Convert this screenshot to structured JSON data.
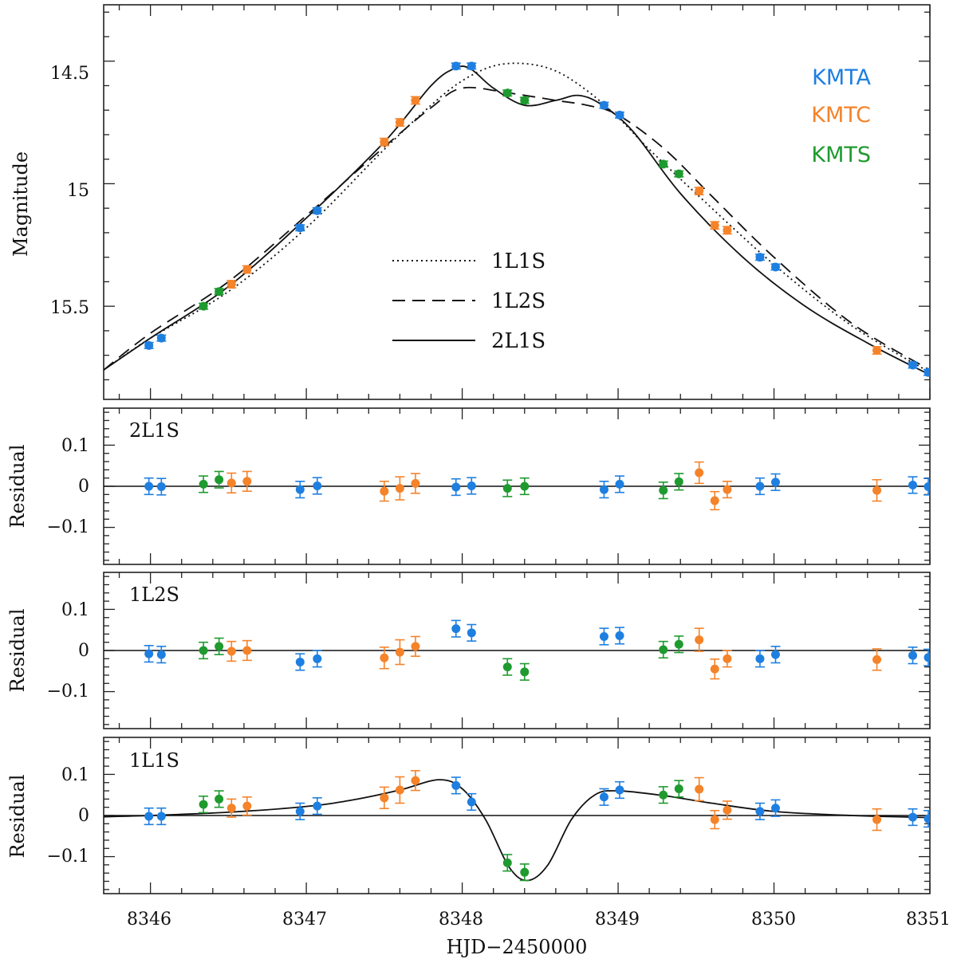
{
  "chart_data": {
    "type": "scatter",
    "xlabel": "HJD−2450000",
    "xlim": [
      8345.7,
      8351
    ],
    "x_ticks": [
      "8346",
      "8347",
      "8348",
      "8349",
      "8350",
      "8351"
    ],
    "observatories": [
      {
        "name": "KMTA",
        "color": "#1e7fe0"
      },
      {
        "name": "KMTC",
        "color": "#f5832a"
      },
      {
        "name": "KMTS",
        "color": "#1f9a2f"
      }
    ],
    "panels": [
      {
        "id": "lightcurve",
        "ylabel": "Magnitude",
        "ylim": [
          15.88,
          14.27
        ],
        "y_ticks": [
          "14.5",
          "15",
          "15.5"
        ],
        "models": [
          {
            "name": "1L1S",
            "style": "dotted",
            "x": [
              8345.7,
              8346.0,
              8346.5,
              8347.0,
              8347.5,
              8347.8,
              8348.0,
              8348.2,
              8348.4,
              8348.6,
              8348.8,
              8349.0,
              8349.2,
              8349.5,
              8350.0,
              8350.5,
              8351.0
            ],
            "y": [
              15.76,
              15.63,
              15.44,
              15.18,
              14.86,
              14.68,
              14.58,
              14.52,
              14.51,
              14.54,
              14.62,
              14.73,
              14.86,
              15.04,
              15.33,
              15.58,
              15.77
            ]
          },
          {
            "name": "1L2S",
            "style": "dashed",
            "x": [
              8345.7,
              8346.0,
              8346.5,
              8347.0,
              8347.5,
              8347.8,
              8348.0,
              8348.3,
              8348.6,
              8348.8,
              8349.0,
              8349.3,
              8349.6,
              8350.0,
              8350.5,
              8351.0
            ],
            "y": [
              15.76,
              15.61,
              15.4,
              15.13,
              14.85,
              14.69,
              14.61,
              14.63,
              14.66,
              14.68,
              14.72,
              14.86,
              15.05,
              15.3,
              15.57,
              15.76
            ]
          },
          {
            "name": "2L1S",
            "style": "solid",
            "x": [
              8345.7,
              8346.0,
              8346.5,
              8347.0,
              8347.5,
              8347.8,
              8347.95,
              8348.05,
              8348.2,
              8348.4,
              8348.6,
              8348.75,
              8348.9,
              8349.1,
              8349.4,
              8349.8,
              8350.2,
              8350.6,
              8351.0
            ],
            "y": [
              15.76,
              15.63,
              15.42,
              15.14,
              14.83,
              14.6,
              14.53,
              14.53,
              14.61,
              14.68,
              14.66,
              14.64,
              14.68,
              14.79,
              15.04,
              15.3,
              15.5,
              15.65,
              15.78
            ]
          }
        ],
        "points": [
          {
            "obs": "KMTA",
            "x": [
              8345.99,
              8346.07,
              8346.96,
              8347.07,
              8347.96,
              8348.06,
              8348.91,
              8349.01,
              8349.91,
              8350.01,
              8350.89,
              8350.99
            ],
            "y": [
              15.66,
              15.63,
              15.18,
              15.11,
              14.52,
              14.52,
              14.68,
              14.72,
              15.3,
              15.34,
              15.74,
              15.77
            ],
            "err": [
              0.012,
              0.012,
              0.012,
              0.012,
              0.012,
              0.012,
              0.012,
              0.012,
              0.012,
              0.012,
              0.012,
              0.012
            ]
          },
          {
            "obs": "KMTC",
            "x": [
              8346.52,
              8346.62,
              8347.5,
              8347.6,
              8347.7,
              8349.52,
              8349.62,
              8349.7,
              8350.66
            ],
            "y": [
              15.41,
              15.35,
              14.83,
              14.75,
              14.66,
              15.03,
              15.17,
              15.19,
              15.68
            ],
            "err": [
              0.015,
              0.015,
              0.015,
              0.015,
              0.015,
              0.015,
              0.015,
              0.015,
              0.015
            ]
          },
          {
            "obs": "KMTS",
            "x": [
              8346.34,
              8346.44,
              8348.29,
              8348.4,
              8349.29,
              8349.39
            ],
            "y": [
              15.5,
              15.44,
              14.63,
              14.66,
              14.92,
              14.96
            ],
            "err": [
              0.012,
              0.012,
              0.012,
              0.012,
              0.012,
              0.012
            ]
          }
        ]
      },
      {
        "id": "resid-2L1S",
        "tag": "2L1S",
        "ylabel": "Residual",
        "ylim": [
          -0.19,
          0.19
        ],
        "y_ticks": [
          "0.1",
          "0",
          "−0.1"
        ],
        "points": [
          {
            "obs": "KMTA",
            "x": [
              8345.99,
              8346.07,
              8346.96,
              8347.07,
              8347.96,
              8348.06,
              8348.91,
              8349.01,
              8349.91,
              8350.01,
              8350.89,
              8350.99
            ],
            "y": [
              0.0,
              -0.001,
              -0.008,
              0.001,
              -0.002,
              0.001,
              -0.008,
              0.005,
              0.0,
              0.01,
              0.003,
              -0.001
            ],
            "err": [
              0.02,
              0.02,
              0.02,
              0.02,
              0.02,
              0.02,
              0.02,
              0.02,
              0.02,
              0.02,
              0.02,
              0.02
            ]
          },
          {
            "obs": "KMTC",
            "x": [
              8346.52,
              8346.62,
              8347.5,
              8347.6,
              8347.7,
              8349.52,
              8349.62,
              8349.7,
              8350.66
            ],
            "y": [
              0.008,
              0.012,
              -0.012,
              -0.005,
              0.007,
              0.033,
              -0.035,
              -0.008,
              -0.01
            ],
            "err": [
              0.024,
              0.024,
              0.024,
              0.028,
              0.024,
              0.026,
              0.022,
              0.02,
              0.026
            ]
          },
          {
            "obs": "KMTS",
            "x": [
              8346.34,
              8346.44,
              8348.29,
              8348.4,
              8349.29,
              8349.39
            ],
            "y": [
              0.005,
              0.016,
              -0.005,
              0.0,
              -0.01,
              0.011
            ],
            "err": [
              0.02,
              0.02,
              0.02,
              0.02,
              0.02,
              0.02
            ]
          }
        ]
      },
      {
        "id": "resid-1L2S",
        "tag": "1L2S",
        "ylabel": "Residual",
        "ylim": [
          -0.19,
          0.19
        ],
        "y_ticks": [
          "0.1",
          "0",
          "−0.1"
        ],
        "points": [
          {
            "obs": "KMTA",
            "x": [
              8345.99,
              8346.07,
              8346.96,
              8347.07,
              8347.96,
              8348.06,
              8348.91,
              8349.01,
              8349.91,
              8350.01,
              8350.89,
              8350.99
            ],
            "y": [
              -0.008,
              -0.01,
              -0.028,
              -0.02,
              0.053,
              0.043,
              0.034,
              0.036,
              -0.02,
              -0.01,
              -0.012,
              -0.017
            ],
            "err": [
              0.02,
              0.02,
              0.02,
              0.02,
              0.02,
              0.02,
              0.02,
              0.02,
              0.02,
              0.02,
              0.02,
              0.02
            ]
          },
          {
            "obs": "KMTC",
            "x": [
              8346.52,
              8346.62,
              8347.5,
              8347.6,
              8347.7,
              8349.52,
              8349.62,
              8349.7,
              8350.66
            ],
            "y": [
              -0.002,
              0.0,
              -0.018,
              -0.004,
              0.01,
              0.026,
              -0.045,
              -0.02,
              -0.022
            ],
            "err": [
              0.024,
              0.024,
              0.026,
              0.03,
              0.024,
              0.028,
              0.024,
              0.02,
              0.026
            ]
          },
          {
            "obs": "KMTS",
            "x": [
              8346.34,
              8346.44,
              8348.29,
              8348.4,
              8349.29,
              8349.39
            ],
            "y": [
              0.0,
              0.01,
              -0.04,
              -0.052,
              0.002,
              0.015
            ],
            "err": [
              0.02,
              0.02,
              0.02,
              0.02,
              0.02,
              0.02
            ]
          }
        ]
      },
      {
        "id": "resid-1L1S",
        "tag": "1L1S",
        "ylabel": "Residual",
        "ylim": [
          -0.19,
          0.19
        ],
        "y_ticks": [
          "0.1",
          "0",
          "−0.1"
        ],
        "models": [
          {
            "name": "2L1S−1L1S",
            "style": "solid",
            "x": [
              8345.7,
              8346.0,
              8346.5,
              8347.0,
              8347.3,
              8347.6,
              8347.85,
              8348.0,
              8348.15,
              8348.3,
              8348.42,
              8348.55,
              8348.7,
              8348.85,
              8349.0,
              8349.3,
              8349.6,
              8350.0,
              8350.5,
              8351.0
            ],
            "y": [
              -0.003,
              0.0,
              0.008,
              0.022,
              0.038,
              0.062,
              0.087,
              0.065,
              -0.01,
              -0.125,
              -0.158,
              -0.12,
              -0.01,
              0.05,
              0.06,
              0.048,
              0.03,
              0.01,
              0.0,
              -0.005
            ]
          }
        ],
        "points": [
          {
            "obs": "KMTA",
            "x": [
              8345.99,
              8346.07,
              8346.96,
              8347.07,
              8347.96,
              8348.06,
              8348.91,
              8349.01,
              8349.91,
              8350.01,
              8350.89,
              8350.99
            ],
            "y": [
              -0.002,
              -0.002,
              0.01,
              0.023,
              0.073,
              0.033,
              0.045,
              0.062,
              0.01,
              0.018,
              -0.004,
              -0.008
            ],
            "err": [
              0.02,
              0.02,
              0.02,
              0.02,
              0.02,
              0.02,
              0.02,
              0.02,
              0.02,
              0.02,
              0.02,
              0.02
            ]
          },
          {
            "obs": "KMTC",
            "x": [
              8346.52,
              8346.62,
              8347.5,
              8347.6,
              8347.7,
              8349.52,
              8349.62,
              8349.7,
              8350.66
            ],
            "y": [
              0.018,
              0.023,
              0.043,
              0.062,
              0.085,
              0.064,
              -0.01,
              0.013,
              -0.01
            ],
            "err": [
              0.022,
              0.022,
              0.026,
              0.032,
              0.024,
              0.028,
              0.022,
              0.022,
              0.026
            ]
          },
          {
            "obs": "KMTS",
            "x": [
              8346.34,
              8346.44,
              8348.29,
              8348.4,
              8349.29,
              8349.39
            ],
            "y": [
              0.027,
              0.04,
              -0.115,
              -0.138,
              0.05,
              0.065
            ],
            "err": [
              0.02,
              0.02,
              0.02,
              0.02,
              0.02,
              0.02
            ]
          }
        ]
      }
    ],
    "legend": {
      "placement": "upper-center",
      "entries": [
        "1L1S",
        "1L2S",
        "2L1S"
      ]
    },
    "obs_legend_placement": "top-right"
  }
}
